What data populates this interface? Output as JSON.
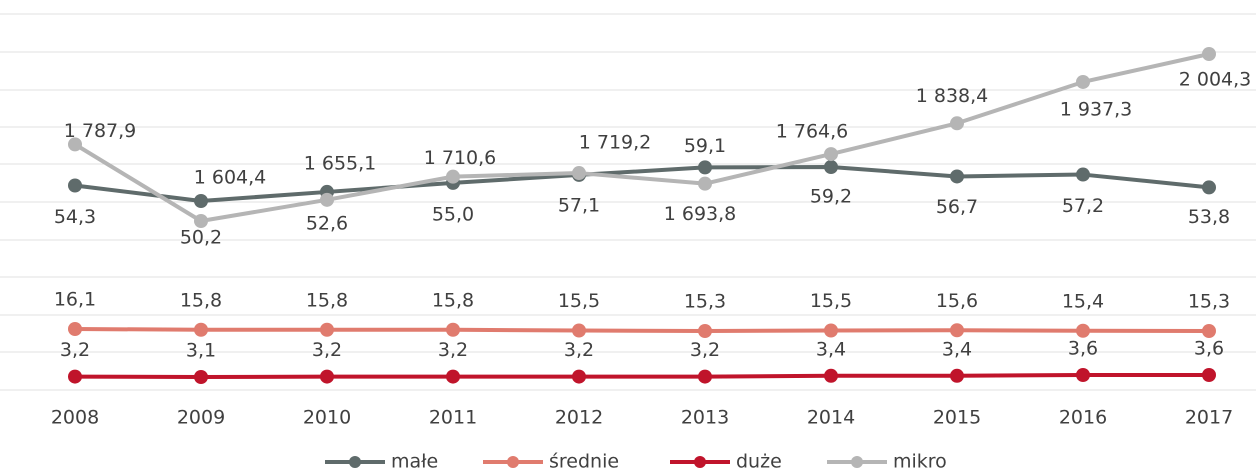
{
  "chart_data": {
    "type": "line",
    "categories": [
      "2008",
      "2009",
      "2010",
      "2011",
      "2012",
      "2013",
      "2014",
      "2015",
      "2016",
      "2017"
    ],
    "series": [
      {
        "name": "małe",
        "color": "#5f6b6b",
        "values": [
          54.3,
          50.2,
          52.6,
          55.0,
          57.1,
          59.1,
          59.2,
          56.7,
          57.2,
          53.8
        ],
        "value_labels": [
          "54,3",
          "50,2",
          "52,6",
          "55,0",
          "57,1",
          "59,1",
          "59,2",
          "56,7",
          "57,2",
          "53,8"
        ]
      },
      {
        "name": "średnie",
        "color": "#e07b6e",
        "values": [
          16.1,
          15.8,
          15.8,
          15.8,
          15.5,
          15.3,
          15.5,
          15.6,
          15.4,
          15.3
        ],
        "value_labels": [
          "16,1",
          "15,8",
          "15,8",
          "15,8",
          "15,5",
          "15,3",
          "15,5",
          "15,6",
          "15,4",
          "15,3"
        ]
      },
      {
        "name": "duże",
        "color": "#c0142b",
        "values": [
          3.2,
          3.1,
          3.2,
          3.2,
          3.2,
          3.2,
          3.4,
          3.4,
          3.6,
          3.6
        ],
        "value_labels": [
          "3,2",
          "3,1",
          "3,2",
          "3,2",
          "3,2",
          "3,2",
          "3,4",
          "3,4",
          "3,6",
          "3,6"
        ]
      },
      {
        "name": "mikro",
        "color": "#b5b5b5",
        "values": [
          1787.9,
          1604.4,
          1655.1,
          1710.6,
          1719.2,
          1693.8,
          1764.6,
          1838.4,
          1937.3,
          2004.3
        ],
        "value_labels": [
          "1 787,9",
          "1 604,4",
          "1 655,1",
          "1 710,6",
          "1 719,2",
          "1 693,8",
          "1 764,6",
          "1 838,4",
          "1 937,3",
          "2 004,3"
        ]
      }
    ]
  }
}
